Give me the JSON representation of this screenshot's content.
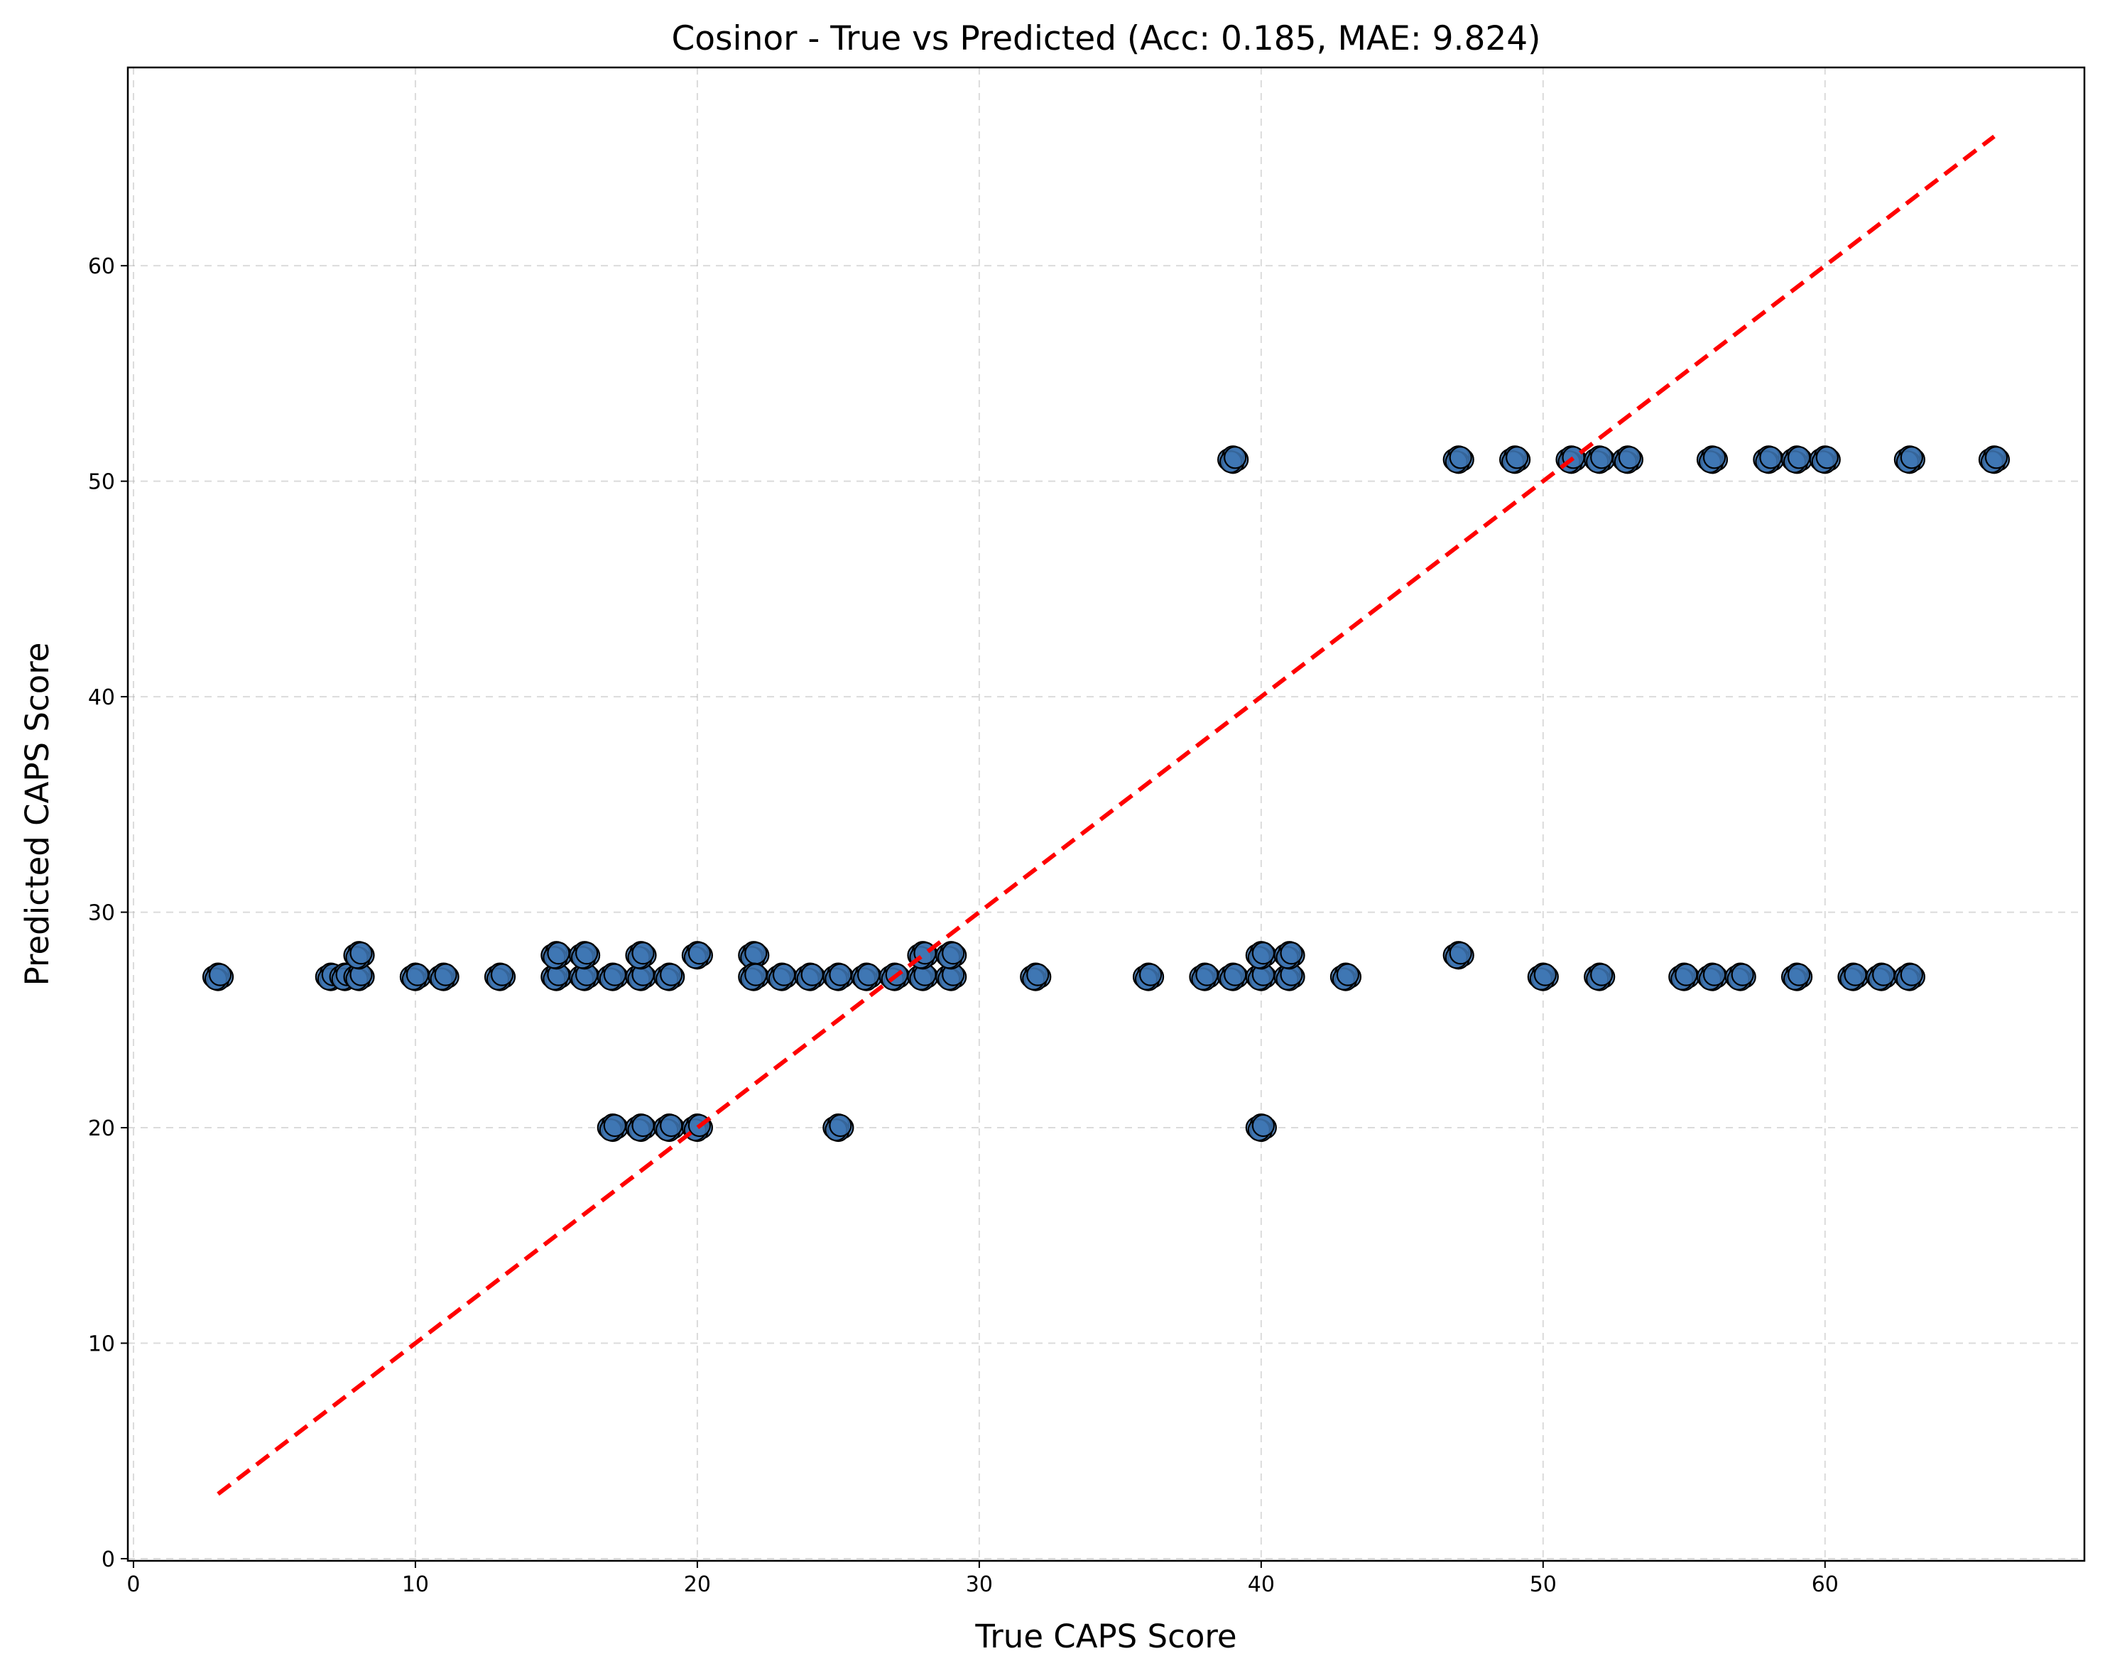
{
  "chart_data": {
    "type": "scatter",
    "title": "Cosinor - True vs Predicted (Acc: 0.185, MAE: 9.824)",
    "xlabel": "True CAPS Score",
    "ylabel": "Predicted CAPS Score",
    "xlim": [
      -0.2,
      69.2
    ],
    "ylim": [
      -0.1,
      69.2
    ],
    "xticks": [
      0,
      10,
      20,
      30,
      40,
      50,
      60
    ],
    "yticks": [
      0,
      10,
      20,
      30,
      40,
      50,
      60
    ],
    "grid": true,
    "colors": {
      "point_fill": "#3f77b4",
      "point_edge": "#000000",
      "reference_line": "#ff0000"
    },
    "reference_line": {
      "label": "",
      "x": [
        3,
        66
      ],
      "y": [
        3,
        66
      ],
      "style": "dashed"
    },
    "points": [
      {
        "x": 3,
        "y": 27
      },
      {
        "x": 7,
        "y": 27
      },
      {
        "x": 7.5,
        "y": 27
      },
      {
        "x": 8,
        "y": 27
      },
      {
        "x": 8,
        "y": 28
      },
      {
        "x": 10,
        "y": 27
      },
      {
        "x": 11,
        "y": 27
      },
      {
        "x": 13,
        "y": 27
      },
      {
        "x": 15,
        "y": 27
      },
      {
        "x": 15,
        "y": 28
      },
      {
        "x": 16,
        "y": 27
      },
      {
        "x": 16,
        "y": 28
      },
      {
        "x": 17,
        "y": 27
      },
      {
        "x": 17,
        "y": 20
      },
      {
        "x": 18,
        "y": 27
      },
      {
        "x": 18,
        "y": 28
      },
      {
        "x": 18,
        "y": 20
      },
      {
        "x": 19,
        "y": 27
      },
      {
        "x": 19,
        "y": 20
      },
      {
        "x": 20,
        "y": 28
      },
      {
        "x": 20,
        "y": 20
      },
      {
        "x": 22,
        "y": 28
      },
      {
        "x": 22,
        "y": 27
      },
      {
        "x": 23,
        "y": 27
      },
      {
        "x": 24,
        "y": 27
      },
      {
        "x": 25,
        "y": 27
      },
      {
        "x": 25,
        "y": 20
      },
      {
        "x": 26,
        "y": 27
      },
      {
        "x": 27,
        "y": 27
      },
      {
        "x": 28,
        "y": 27
      },
      {
        "x": 28,
        "y": 28
      },
      {
        "x": 29,
        "y": 27
      },
      {
        "x": 29,
        "y": 28
      },
      {
        "x": 32,
        "y": 27
      },
      {
        "x": 36,
        "y": 27
      },
      {
        "x": 38,
        "y": 27
      },
      {
        "x": 39,
        "y": 27
      },
      {
        "x": 39,
        "y": 51
      },
      {
        "x": 40,
        "y": 27
      },
      {
        "x": 40,
        "y": 28
      },
      {
        "x": 40,
        "y": 20
      },
      {
        "x": 41,
        "y": 27
      },
      {
        "x": 41,
        "y": 28
      },
      {
        "x": 43,
        "y": 27
      },
      {
        "x": 47,
        "y": 28
      },
      {
        "x": 47,
        "y": 51
      },
      {
        "x": 49,
        "y": 51
      },
      {
        "x": 50,
        "y": 27
      },
      {
        "x": 51,
        "y": 51
      },
      {
        "x": 52,
        "y": 51
      },
      {
        "x": 52,
        "y": 27
      },
      {
        "x": 53,
        "y": 51
      },
      {
        "x": 55,
        "y": 27
      },
      {
        "x": 56,
        "y": 27
      },
      {
        "x": 56,
        "y": 51
      },
      {
        "x": 57,
        "y": 27
      },
      {
        "x": 58,
        "y": 51
      },
      {
        "x": 59,
        "y": 51
      },
      {
        "x": 59,
        "y": 27
      },
      {
        "x": 60,
        "y": 51
      },
      {
        "x": 61,
        "y": 27
      },
      {
        "x": 62,
        "y": 27
      },
      {
        "x": 63,
        "y": 27
      },
      {
        "x": 63,
        "y": 51
      },
      {
        "x": 66,
        "y": 51
      }
    ]
  }
}
